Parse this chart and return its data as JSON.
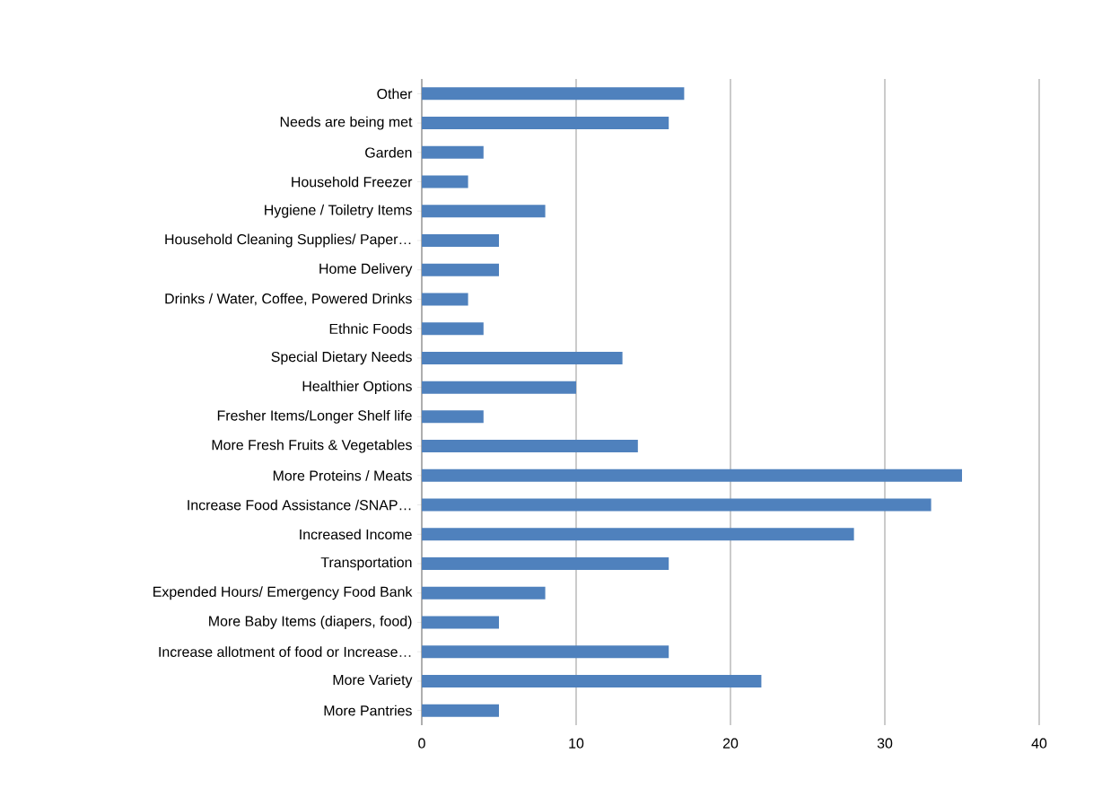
{
  "chart_data": {
    "type": "bar",
    "orientation": "horizontal",
    "categories": [
      "Other",
      "Needs are being met",
      "Garden",
      "Household Freezer",
      "Hygiene / Toiletry Items",
      "Household Cleaning Supplies/ Paper…",
      "Home Delivery",
      "Drinks / Water, Coffee, Powered Drinks",
      "Ethnic Foods",
      "Special Dietary Needs",
      "Healthier Options",
      "Fresher Items/Longer Shelf life",
      "More Fresh Fruits & Vegetables",
      "More Proteins / Meats",
      "Increase Food Assistance /SNAP…",
      "Increased Income",
      "Transportation",
      "Expended Hours/ Emergency Food Bank",
      "More Baby Items (diapers, food)",
      "Increase allotment of food or Increase…",
      "More Variety",
      "More Pantries"
    ],
    "values": [
      17,
      16,
      4,
      3,
      8,
      5,
      5,
      3,
      4,
      13,
      10,
      4,
      14,
      35,
      33,
      28,
      16,
      8,
      5,
      16,
      22,
      5
    ],
    "color": "#4f81bd",
    "xlim": [
      0,
      40
    ],
    "xticks": [
      0,
      10,
      20,
      30,
      40
    ],
    "grid": "x"
  }
}
